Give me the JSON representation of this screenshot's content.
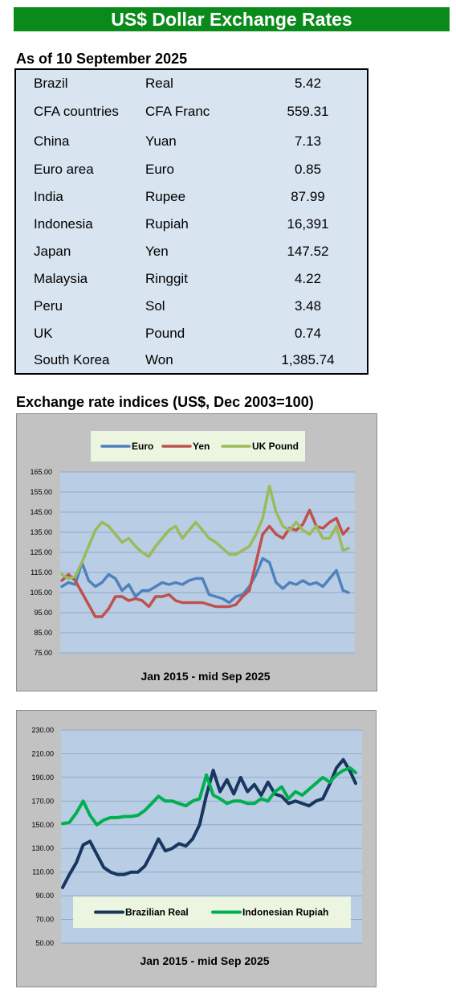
{
  "header": {
    "title": "US$ Dollar Exchange Rates"
  },
  "rates": {
    "as_of": "As of 10 September 2025",
    "rows": [
      {
        "country": "Brazil",
        "currency": "Real",
        "rate": "5.42"
      },
      {
        "country": "CFA countries",
        "currency": "CFA Franc",
        "rate": "559.31"
      },
      {
        "country": "China",
        "currency": "Yuan",
        "rate": "7.13"
      },
      {
        "country": "Euro area",
        "currency": "Euro",
        "rate": "0.85"
      },
      {
        "country": "India",
        "currency": "Rupee",
        "rate": "87.99"
      },
      {
        "country": "Indonesia",
        "currency": "Rupiah",
        "rate": "16,391"
      },
      {
        "country": "Japan",
        "currency": "Yen",
        "rate": "147.52"
      },
      {
        "country": "Malaysia",
        "currency": "Ringgit",
        "rate": "4.22"
      },
      {
        "country": "Peru",
        "currency": "Sol",
        "rate": "3.48"
      },
      {
        "country": "UK",
        "currency": "Pound",
        "rate": "0.74"
      },
      {
        "country": "South Korea",
        "currency": "Won",
        "rate": "1,385.74"
      }
    ]
  },
  "indices": {
    "title": "Exchange rate indices (US$, Dec 2003=100)"
  },
  "chart_data": [
    {
      "type": "line",
      "title": "",
      "xlabel": "Jan 2015 - mid Sep 2025",
      "ylabel": "",
      "ylim": [
        75,
        165
      ],
      "yticks": [
        "165.00",
        "155.00",
        "145.00",
        "135.00",
        "125.00",
        "115.00",
        "105.00",
        "95.00",
        "85.00",
        "75.00"
      ],
      "grid": true,
      "legend": "top-center",
      "x": [
        2015.0,
        2015.25,
        2015.5,
        2015.75,
        2016.0,
        2016.25,
        2016.5,
        2016.75,
        2017.0,
        2017.25,
        2017.5,
        2017.75,
        2018.0,
        2018.25,
        2018.5,
        2018.75,
        2019.0,
        2019.25,
        2019.5,
        2019.75,
        2020.0,
        2020.25,
        2020.5,
        2020.75,
        2021.0,
        2021.25,
        2021.5,
        2021.75,
        2022.0,
        2022.25,
        2022.5,
        2022.75,
        2023.0,
        2023.25,
        2023.5,
        2023.75,
        2024.0,
        2024.25,
        2024.5,
        2024.75,
        2025.0,
        2025.25,
        2025.5,
        2025.7
      ],
      "series": [
        {
          "name": "Euro",
          "color": "#4f81bd",
          "values": [
            108,
            110,
            109,
            120,
            111,
            108,
            110,
            114,
            112,
            106,
            109,
            103,
            106,
            106,
            108,
            110,
            109,
            110,
            109,
            111,
            112,
            112,
            104,
            103,
            102,
            100,
            103,
            104,
            108,
            114,
            122,
            120,
            110,
            107,
            110,
            109,
            111,
            109,
            110,
            108,
            112,
            116,
            106,
            105
          ]
        },
        {
          "name": "Yen",
          "color": "#c0504d",
          "values": [
            111,
            114,
            111,
            105,
            99,
            93,
            93,
            97,
            103,
            103,
            101,
            102,
            101,
            98,
            103,
            103,
            104,
            101,
            100,
            100,
            100,
            100,
            99,
            98,
            98,
            98,
            99,
            103,
            106,
            120,
            134,
            138,
            134,
            132,
            137,
            136,
            139,
            146,
            138,
            137,
            140,
            142,
            134,
            137
          ]
        },
        {
          "name": "UK Pound",
          "color": "#9bbb59",
          "values": [
            114,
            112,
            113,
            120,
            128,
            136,
            140,
            138,
            134,
            130,
            132,
            128,
            125,
            123,
            128,
            132,
            136,
            138,
            132,
            136,
            140,
            136,
            132,
            130,
            127,
            124,
            124,
            126,
            128,
            134,
            142,
            158,
            145,
            138,
            136,
            140,
            136,
            134,
            138,
            132,
            132,
            138,
            126,
            127
          ]
        }
      ]
    },
    {
      "type": "line",
      "title": "",
      "xlabel": "Jan 2015 - mid Sep 2025",
      "ylabel": "",
      "ylim": [
        50,
        230
      ],
      "yticks": [
        "230.00",
        "210.00",
        "190.00",
        "170.00",
        "150.00",
        "130.00",
        "110.00",
        "90.00",
        "70.00",
        "50.00"
      ],
      "grid": true,
      "legend": "bottom-center",
      "x": [
        2015.0,
        2015.25,
        2015.5,
        2015.75,
        2016.0,
        2016.25,
        2016.5,
        2016.75,
        2017.0,
        2017.25,
        2017.5,
        2017.75,
        2018.0,
        2018.25,
        2018.5,
        2018.75,
        2019.0,
        2019.25,
        2019.5,
        2019.75,
        2020.0,
        2020.25,
        2020.5,
        2020.75,
        2021.0,
        2021.25,
        2021.5,
        2021.75,
        2022.0,
        2022.25,
        2022.5,
        2022.75,
        2023.0,
        2023.25,
        2023.5,
        2023.75,
        2024.0,
        2024.25,
        2024.5,
        2024.75,
        2025.0,
        2025.25,
        2025.5,
        2025.7
      ],
      "series": [
        {
          "name": "Brazilian Real",
          "color": "#17375e",
          "values": [
            97,
            108,
            118,
            133,
            136,
            125,
            114,
            110,
            108,
            108,
            110,
            110,
            115,
            126,
            138,
            128,
            130,
            134,
            132,
            138,
            150,
            175,
            196,
            178,
            188,
            176,
            190,
            178,
            184,
            175,
            186,
            176,
            174,
            168,
            170,
            168,
            166,
            170,
            172,
            184,
            198,
            205,
            195,
            185
          ]
        },
        {
          "name": "Indonesian Rupiah",
          "color": "#00b050",
          "values": [
            151,
            152,
            160,
            170,
            158,
            150,
            154,
            156,
            156,
            157,
            157,
            158,
            162,
            168,
            174,
            170,
            170,
            168,
            166,
            170,
            172,
            192,
            175,
            172,
            168,
            170,
            170,
            168,
            168,
            172,
            170,
            178,
            182,
            172,
            178,
            175,
            180,
            185,
            190,
            186,
            192,
            196,
            198,
            194
          ]
        }
      ]
    }
  ]
}
